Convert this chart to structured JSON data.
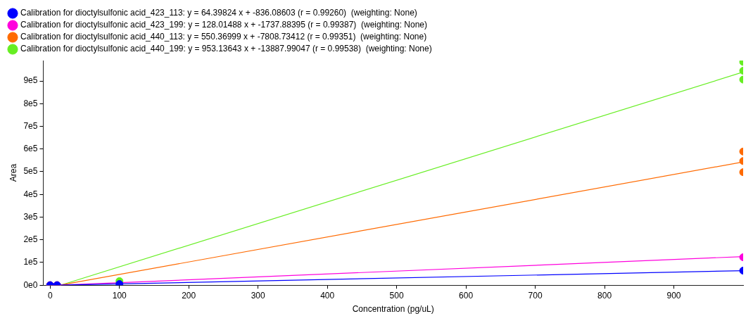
{
  "chart_data": {
    "type": "scatter",
    "xlabel": "Concentration (pg/uL)",
    "ylabel": "Area",
    "xlim": [
      -10,
      1000
    ],
    "xticks": [
      0,
      100,
      200,
      300,
      400,
      500,
      600,
      700,
      800,
      900
    ],
    "ylim": [
      0,
      990000
    ],
    "yticks": [
      {
        "value": 0,
        "label": "0e0"
      },
      {
        "value": 100000,
        "label": "1e5"
      },
      {
        "value": 200000,
        "label": "2e5"
      },
      {
        "value": 300000,
        "label": "3e5"
      },
      {
        "value": 400000,
        "label": "4e5"
      },
      {
        "value": 500000,
        "label": "5e5"
      },
      {
        "value": 600000,
        "label": "6e5"
      },
      {
        "value": 700000,
        "label": "7e5"
      },
      {
        "value": 800000,
        "label": "8e5"
      },
      {
        "value": 900000,
        "label": "9e5"
      }
    ],
    "grid": false,
    "legend": "top left",
    "marker": "circle",
    "series": [
      {
        "name": "Calibration for dioctylsulfonic acid_423_113: y = 64.39824 x + -836.08603 (r = 0.99260)  (weighting: None)",
        "color": "#0000ff",
        "x": [
          0,
          10,
          100,
          1000
        ],
        "values": [
          0,
          0,
          5000,
          64000
        ]
      },
      {
        "name": "Calibration for dioctylsulfonic acid_423_199: y = 128.01488 x + -1737.88395 (r = 0.99387)  (weighting: None)",
        "color": "#ff00dd",
        "x": [
          0,
          10,
          100,
          1000
        ],
        "values": [
          0,
          0,
          null,
          123000
        ]
      },
      {
        "name": "Calibration for dioctylsulfonic acid_440_113: y = 550.36999 x + -7808.73412 (r = 0.99351)  (weighting: None)",
        "color": "#ff6a00",
        "x": [
          0,
          10,
          100,
          1000,
          1000,
          1000
        ],
        "values": [
          0,
          0,
          null,
          589000,
          547000,
          498000
        ]
      },
      {
        "name": "Calibration for dioctylsulfonic acid_440_199: y = 953.13643 x + -13887.99047 (r = 0.99538)  (weighting: None)",
        "color": "#66ee22",
        "x": [
          0,
          10,
          100,
          1000,
          1000,
          1000
        ],
        "values": [
          0,
          0,
          18000,
          984000,
          945000,
          906000
        ]
      },
      {
        "type": "line",
        "marker": "none",
        "color": "#0000ff",
        "x": [
          13,
          1000
        ],
        "values": [
          0,
          64000
        ]
      },
      {
        "type": "line",
        "marker": "none",
        "color": "#ff00dd",
        "x": [
          14,
          1000
        ],
        "values": [
          0,
          126000
        ]
      },
      {
        "type": "line",
        "marker": "none",
        "color": "#ff6a00",
        "x": [
          14,
          1000
        ],
        "values": [
          0,
          543000
        ]
      },
      {
        "type": "line",
        "marker": "none",
        "color": "#66ee22",
        "x": [
          15,
          1000
        ],
        "values": [
          0,
          939000
        ]
      }
    ]
  }
}
